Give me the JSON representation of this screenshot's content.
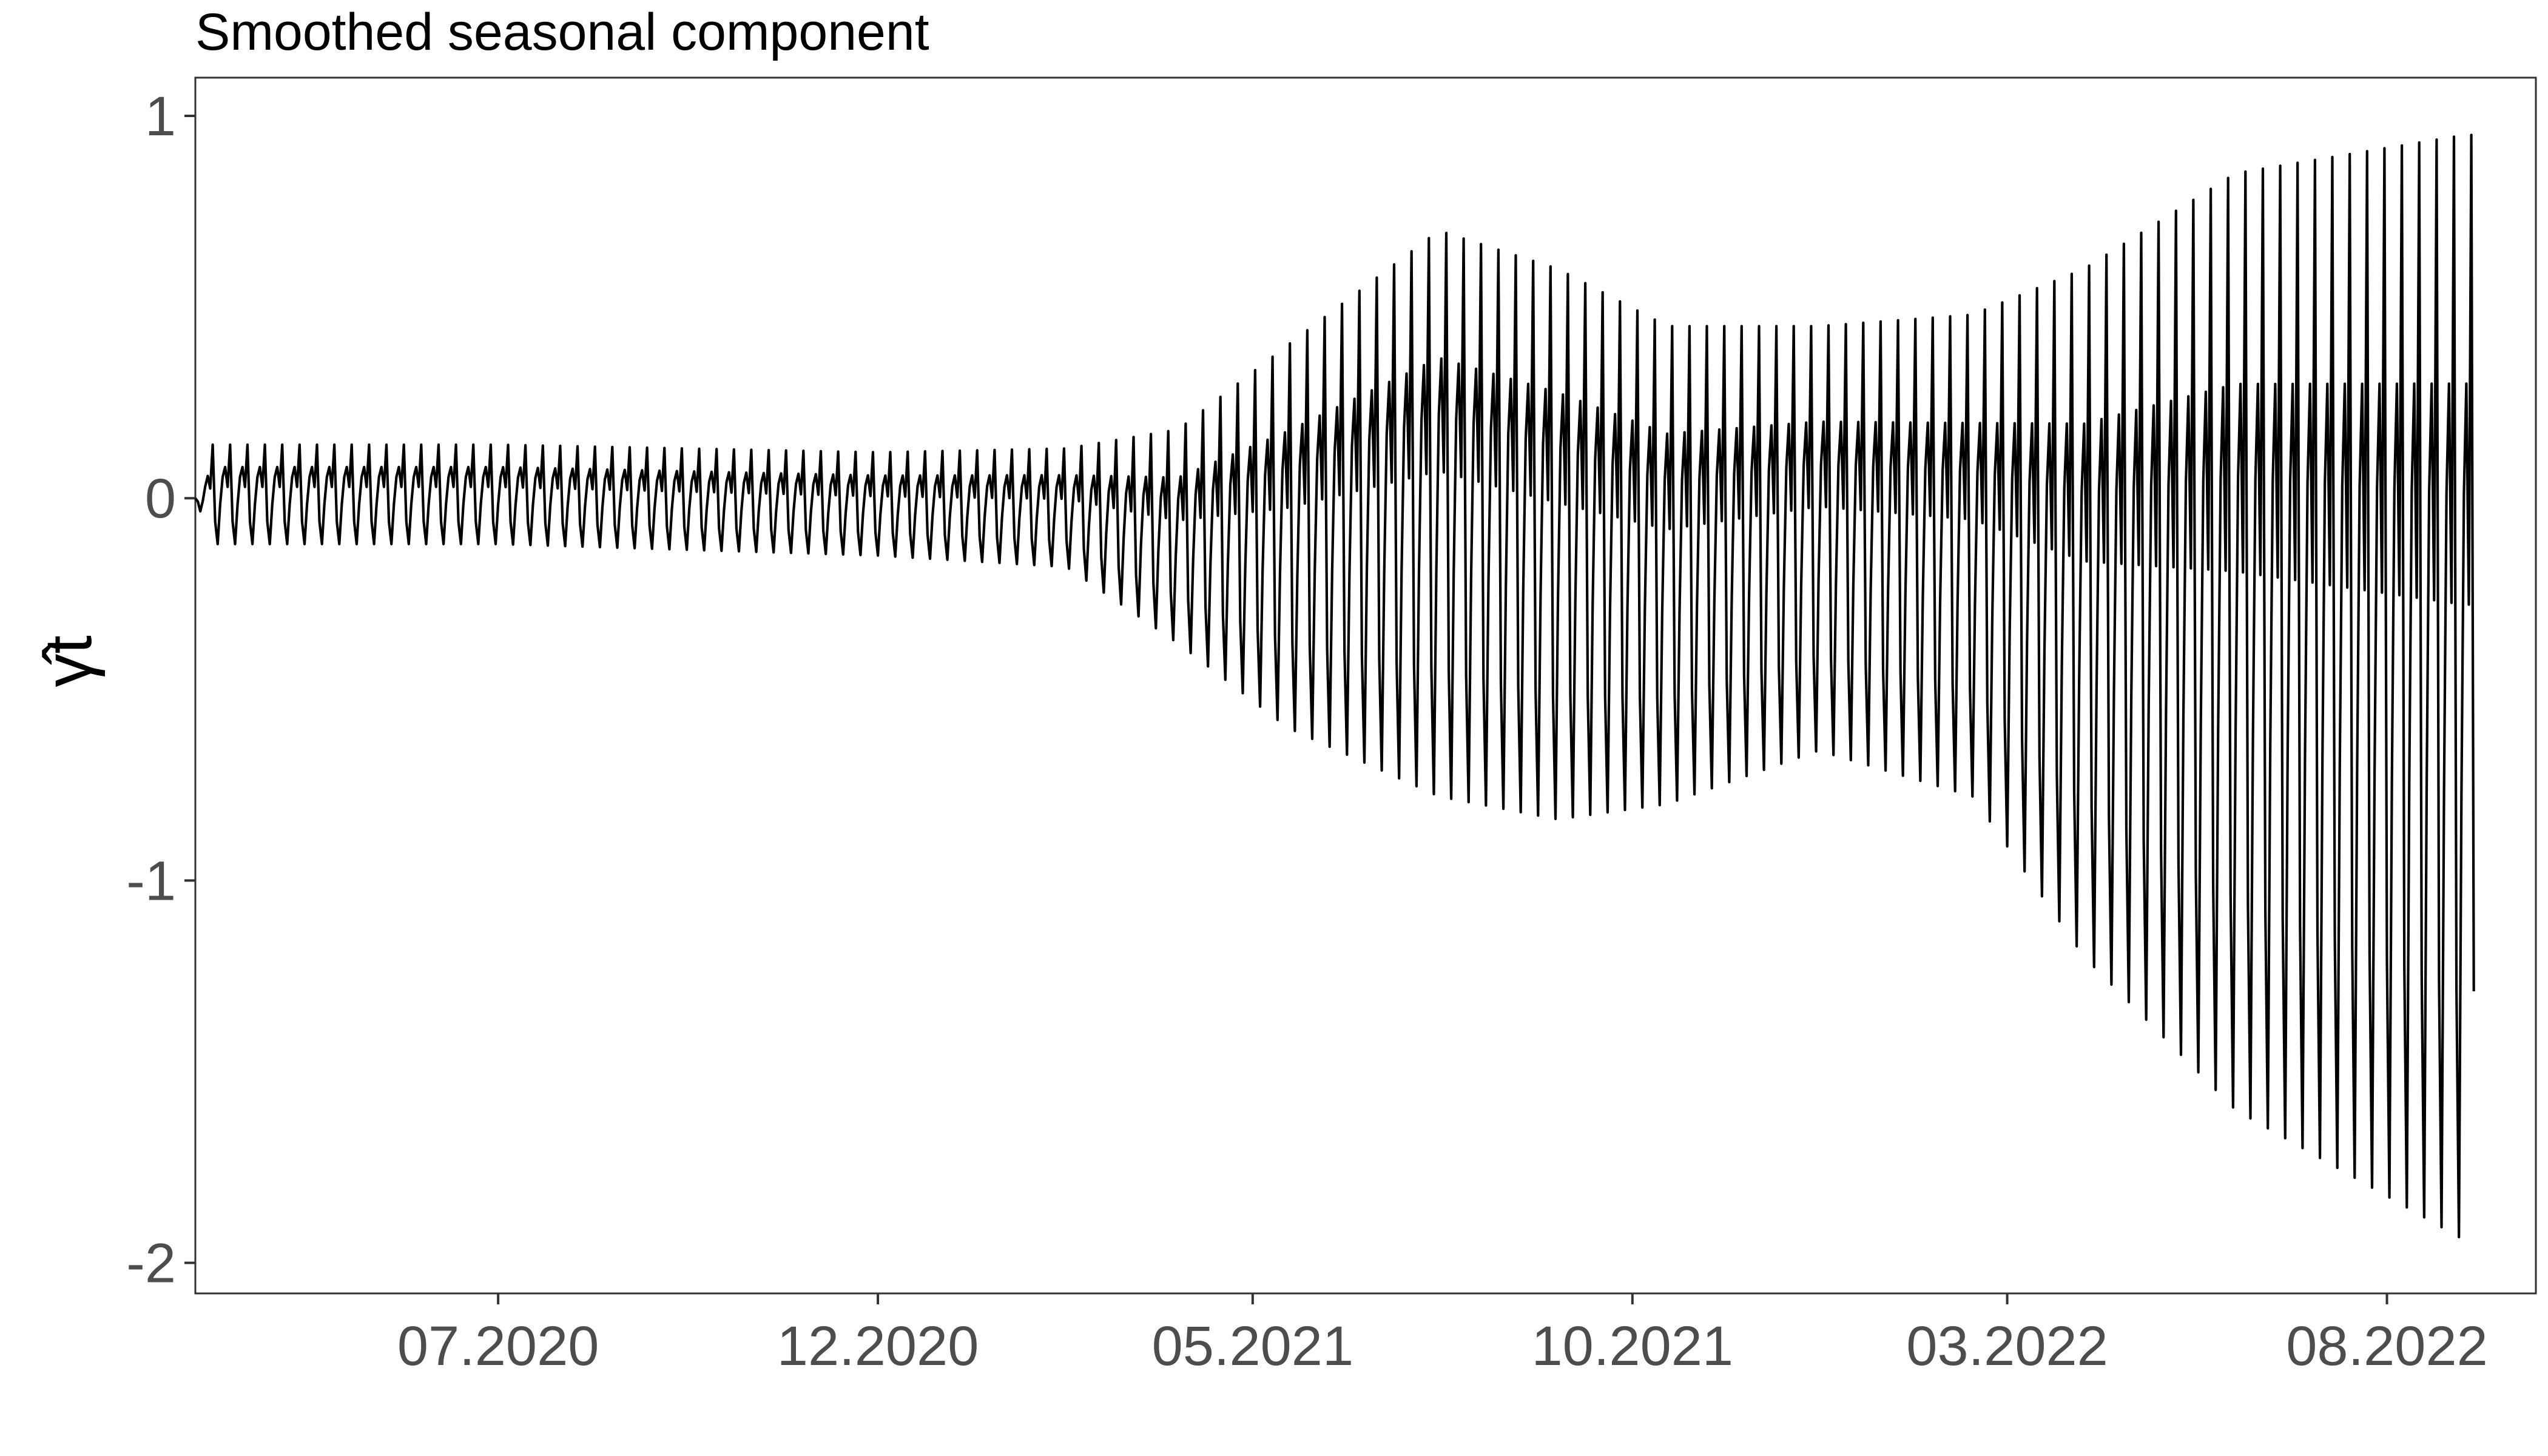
{
  "chart_data": {
    "type": "line",
    "title": "Smoothed seasonal component",
    "xlabel": "",
    "ylabel": "γ̂t",
    "x_range": [
      "2020-03-01",
      "2022-09-30"
    ],
    "ylim": [
      -2.08,
      1.1
    ],
    "y_ticks": [
      1,
      0,
      -1,
      -2
    ],
    "y_tick_labels": [
      "1",
      "0",
      "-1",
      "-2"
    ],
    "x_ticks": [
      "2020-07-01",
      "2020-12-01",
      "2021-05-01",
      "2021-10-01",
      "2022-03-01",
      "2022-08-01"
    ],
    "x_tick_labels": [
      "07.2020",
      "12.2020",
      "05.2021",
      "10.2021",
      "03.2022",
      "08.2022"
    ],
    "grid": false,
    "legend": "none",
    "line_color": "#000000",
    "series": [
      {
        "start_date": "2020-03-01",
        "end_date": "2022-09-05",
        "period_days": 7,
        "envelope": [
          {
            "date": "2020-03-01",
            "upper": 0.0,
            "lower": 0.0
          },
          {
            "date": "2020-03-08",
            "upper": 0.14,
            "lower": -0.12
          },
          {
            "date": "2020-07-01",
            "upper": 0.14,
            "lower": -0.12
          },
          {
            "date": "2020-12-01",
            "upper": 0.12,
            "lower": -0.15
          },
          {
            "date": "2021-02-15",
            "upper": 0.13,
            "lower": -0.18
          },
          {
            "date": "2021-04-01",
            "upper": 0.18,
            "lower": -0.38
          },
          {
            "date": "2021-05-15",
            "upper": 0.4,
            "lower": -0.6
          },
          {
            "date": "2021-07-15",
            "upper": 0.7,
            "lower": -0.78
          },
          {
            "date": "2021-09-01",
            "upper": 0.6,
            "lower": -0.84
          },
          {
            "date": "2021-10-15",
            "upper": 0.45,
            "lower": -0.8
          },
          {
            "date": "2021-12-15",
            "upper": 0.45,
            "lower": -0.66
          },
          {
            "date": "2022-02-15",
            "upper": 0.48,
            "lower": -0.78
          },
          {
            "date": "2022-04-01",
            "upper": 0.6,
            "lower": -1.2
          },
          {
            "date": "2022-06-01",
            "upper": 0.85,
            "lower": -1.6
          },
          {
            "date": "2022-09-01",
            "upper": 0.95,
            "lower": -1.94
          }
        ]
      }
    ]
  }
}
